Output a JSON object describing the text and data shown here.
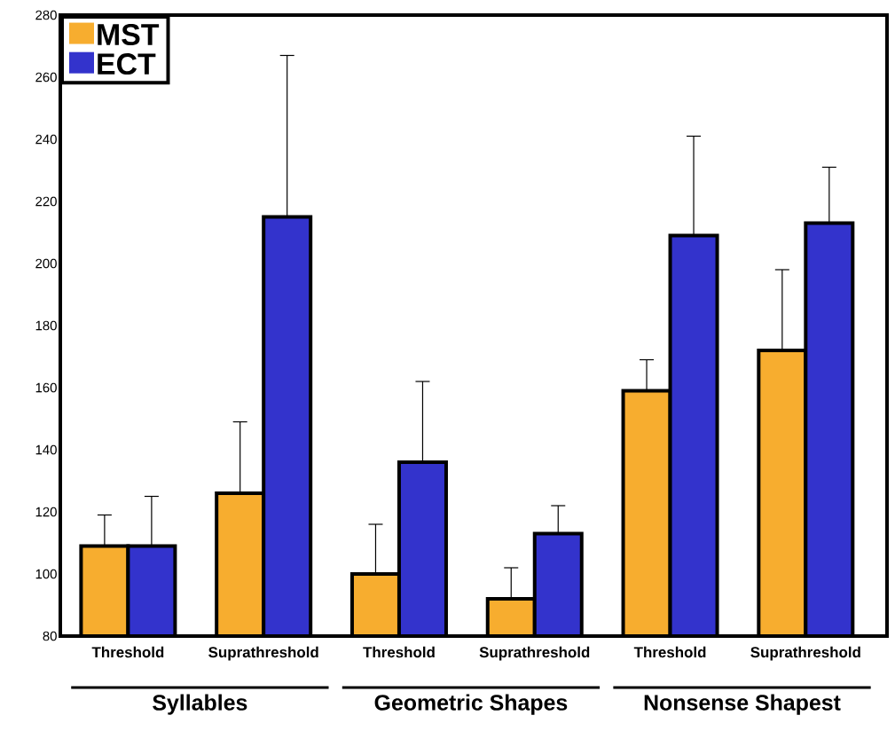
{
  "chart_data": {
    "type": "bar",
    "categories": [
      "Threshold",
      "Suprathreshold",
      "Threshold",
      "Suprathreshold",
      "Threshold",
      "Suprathreshold"
    ],
    "series": [
      {
        "name": "MST",
        "color": "#f7ad2f",
        "values": [
          109,
          126,
          100,
          92,
          159,
          172
        ],
        "errors": [
          [
            109,
            119
          ],
          [
            126,
            149
          ],
          [
            100,
            116
          ],
          [
            92,
            102
          ],
          [
            159,
            169
          ],
          [
            172,
            198
          ]
        ]
      },
      {
        "name": "ECT",
        "color": "#3333cc",
        "values": [
          109,
          215,
          136,
          113,
          209,
          213
        ],
        "errors": [
          [
            109,
            125
          ],
          [
            215,
            267
          ],
          [
            136,
            162
          ],
          [
            113,
            122
          ],
          [
            209,
            241
          ],
          [
            213,
            231
          ]
        ]
      }
    ],
    "annotations": [
      "Syllables",
      "Geometric Shapes",
      "Nonsense Shapest"
    ],
    "ylim": [
      80,
      280
    ],
    "yticks": [
      80,
      100,
      120,
      140,
      160,
      180,
      200,
      220,
      240,
      260,
      280
    ],
    "legend": "top left"
  }
}
